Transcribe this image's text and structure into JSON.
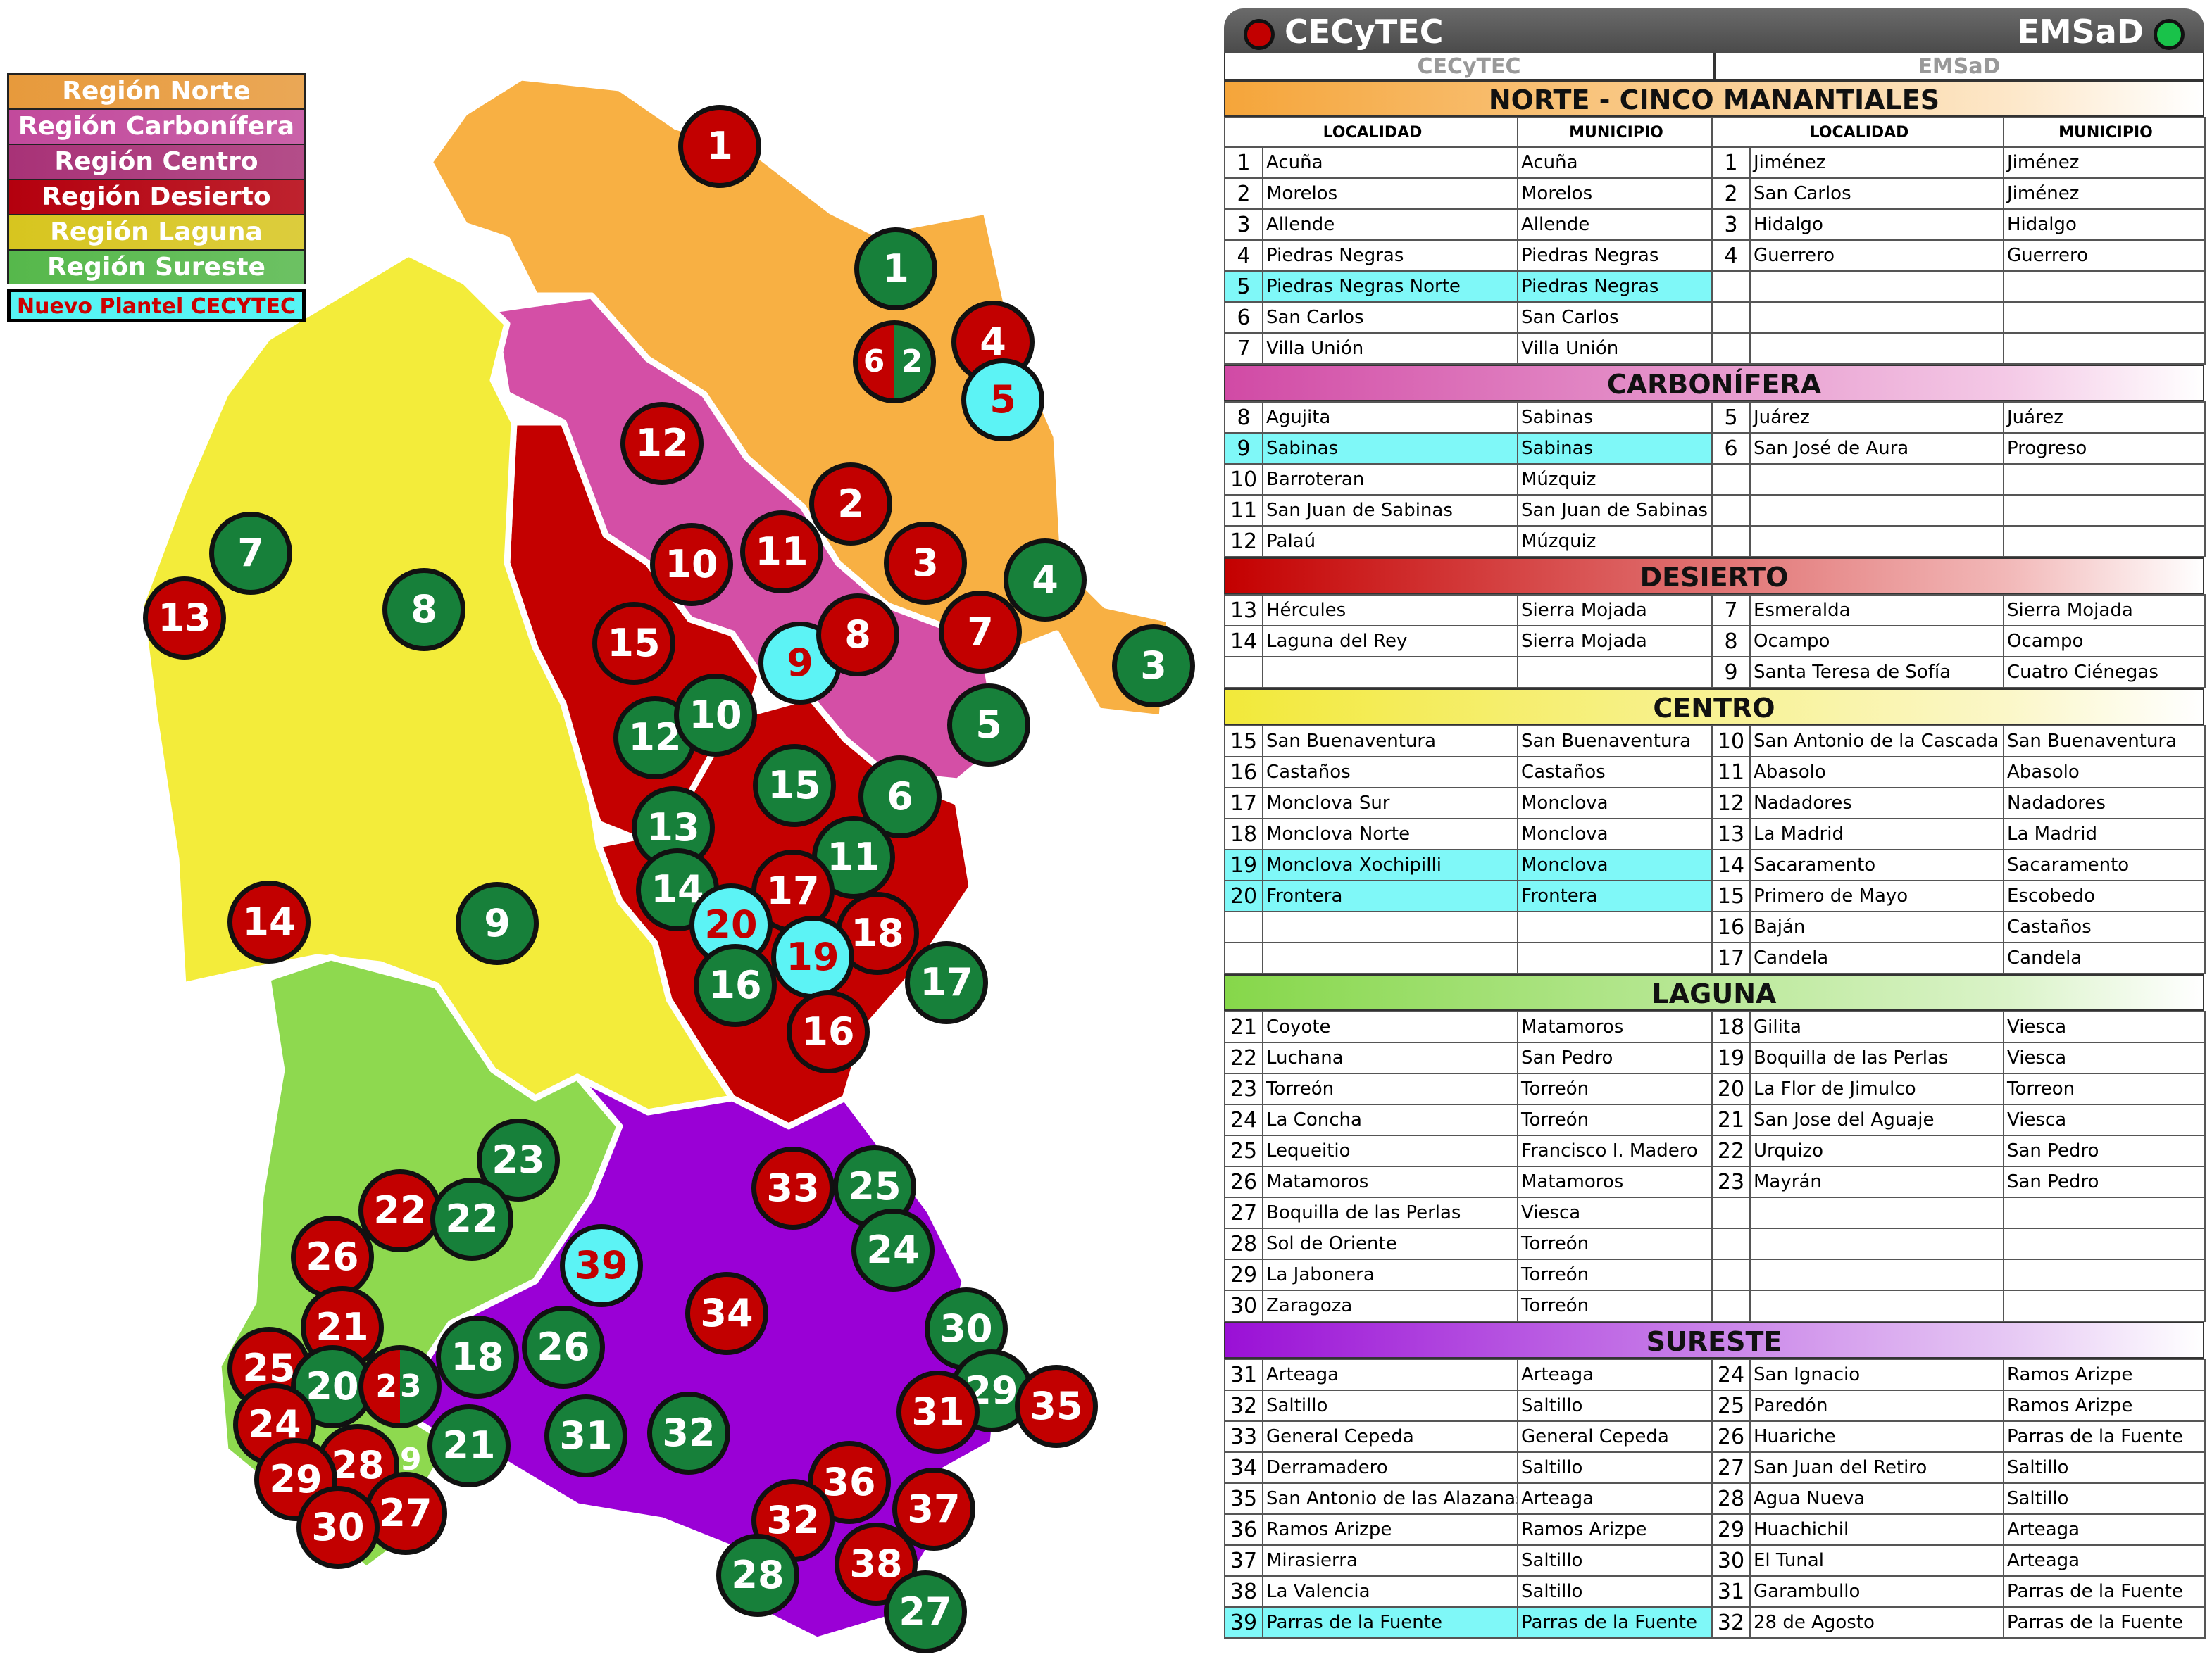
{
  "legend": [
    {
      "label": "Región Norte",
      "color": "#e79a3c"
    },
    {
      "label": "Región Carbonífera",
      "color": "#c24a9c"
    },
    {
      "label": "Región Centro",
      "color": "#a83277"
    },
    {
      "label": "Región Desierto",
      "color": "#b4000e"
    },
    {
      "label": "Región Laguna",
      "color": "#d7c51f"
    },
    {
      "label": "Región Sureste",
      "color": "#56b84b"
    }
  ],
  "legend_new": "Nuevo Plantel CECYTEC",
  "colors": {
    "norte": "#f8b043",
    "carbonifera": "#d44fa6",
    "desierto": "#c40000",
    "centro": "#f3ec3a",
    "laguna": "#8ed94f",
    "sureste": "#9a00d6"
  },
  "header": {
    "left": "CECyTEC",
    "right": "EMSaD",
    "sub_left": "CECyTEC",
    "sub_right": "EMSaD"
  },
  "column_headers": [
    "LOCALIDAD",
    "MUNICIPIO",
    "LOCALIDAD",
    "MUNICIPIO"
  ],
  "markers": [
    {
      "label": "1",
      "kind": "cecytec"
    },
    {
      "label": "1",
      "kind": "emsad"
    },
    {
      "label": "4",
      "kind": "cecytec"
    },
    {
      "label": "6 2",
      "kind": "split"
    },
    {
      "label": "5",
      "kind": "new"
    },
    {
      "label": "12",
      "kind": "cecytec"
    },
    {
      "label": "2",
      "kind": "cecytec"
    },
    {
      "label": "10",
      "kind": "cecytec"
    },
    {
      "label": "11",
      "kind": "cecytec"
    },
    {
      "label": "3",
      "kind": "cecytec"
    },
    {
      "label": "4",
      "kind": "emsad"
    },
    {
      "label": "7",
      "kind": "emsad"
    },
    {
      "label": "13",
      "kind": "cecytec"
    },
    {
      "label": "8",
      "kind": "emsad"
    },
    {
      "label": "15",
      "kind": "cecytec"
    },
    {
      "label": "9",
      "kind": "new"
    },
    {
      "label": "8",
      "kind": "cecytec"
    },
    {
      "label": "7",
      "kind": "cecytec"
    },
    {
      "label": "3",
      "kind": "emsad"
    },
    {
      "label": "12",
      "kind": "emsad"
    },
    {
      "label": "10",
      "kind": "emsad"
    },
    {
      "label": "5",
      "kind": "emsad"
    },
    {
      "label": "15",
      "kind": "emsad"
    },
    {
      "label": "6",
      "kind": "emsad"
    },
    {
      "label": "13",
      "kind": "emsad"
    },
    {
      "label": "11",
      "kind": "emsad"
    },
    {
      "label": "14",
      "kind": "emsad"
    },
    {
      "label": "17",
      "kind": "cecytec"
    },
    {
      "label": "14",
      "kind": "cecytec"
    },
    {
      "label": "9",
      "kind": "emsad"
    },
    {
      "label": "20",
      "kind": "new"
    },
    {
      "label": "18",
      "kind": "cecytec"
    },
    {
      "label": "19",
      "kind": "new"
    },
    {
      "label": "16",
      "kind": "emsad"
    },
    {
      "label": "17",
      "kind": "emsad"
    },
    {
      "label": "16",
      "kind": "cecytec"
    },
    {
      "label": "23",
      "kind": "emsad"
    },
    {
      "label": "33",
      "kind": "cecytec"
    },
    {
      "label": "25",
      "kind": "emsad"
    },
    {
      "label": "22",
      "kind": "cecytec"
    },
    {
      "label": "22",
      "kind": "emsad"
    },
    {
      "label": "24",
      "kind": "emsad"
    },
    {
      "label": "26",
      "kind": "cecytec"
    },
    {
      "label": "39",
      "kind": "new"
    },
    {
      "label": "34",
      "kind": "cecytec"
    },
    {
      "label": "21",
      "kind": "cecytec"
    },
    {
      "label": "30",
      "kind": "emsad"
    },
    {
      "label": "18",
      "kind": "emsad"
    },
    {
      "label": "26",
      "kind": "emsad"
    },
    {
      "label": "25",
      "kind": "cecytec"
    },
    {
      "label": "20",
      "kind": "emsad"
    },
    {
      "label": "23 19",
      "kind": "split"
    },
    {
      "label": "29",
      "kind": "emsad"
    },
    {
      "label": "35",
      "kind": "cecytec"
    },
    {
      "label": "31",
      "kind": "cecytec"
    },
    {
      "label": "24",
      "kind": "cecytec"
    },
    {
      "label": "21",
      "kind": "emsad"
    },
    {
      "label": "31",
      "kind": "emsad"
    },
    {
      "label": "32",
      "kind": "emsad"
    },
    {
      "label": "28",
      "kind": "cecytec"
    },
    {
      "label": "29",
      "kind": "cecytec"
    },
    {
      "label": "36",
      "kind": "cecytec"
    },
    {
      "label": "27",
      "kind": "cecytec"
    },
    {
      "label": "37",
      "kind": "cecytec"
    },
    {
      "label": "30",
      "kind": "cecytec"
    },
    {
      "label": "32",
      "kind": "cecytec"
    },
    {
      "label": "38",
      "kind": "cecytec"
    },
    {
      "label": "28",
      "kind": "emsad"
    },
    {
      "label": "27",
      "kind": "emsad"
    }
  ],
  "sections": [
    {
      "title": "NORTE - CINCO MANANTIALES",
      "grad": "linear-gradient(90deg,#f5a53a,#fde7c8 80%,#fff)",
      "rows": [
        {
          "n": "1",
          "loc": "Acuña",
          "mun": "Acuña",
          "n2": "1",
          "loc2": "Jiménez",
          "mun2": "Jiménez"
        },
        {
          "n": "2",
          "loc": "Morelos",
          "mun": "Morelos",
          "n2": "2",
          "loc2": "San Carlos",
          "mun2": "Jiménez"
        },
        {
          "n": "3",
          "loc": "Allende",
          "mun": "Allende",
          "n2": "3",
          "loc2": "Hidalgo",
          "mun2": "Hidalgo"
        },
        {
          "n": "4",
          "loc": "Piedras Negras",
          "mun": "Piedras Negras",
          "n2": "4",
          "loc2": "Guerrero",
          "mun2": "Guerrero"
        },
        {
          "n": "5",
          "loc": "Piedras Negras Norte",
          "mun": "Piedras Negras",
          "n2": "",
          "loc2": "",
          "mun2": "",
          "hl": true
        },
        {
          "n": "6",
          "loc": "San Carlos",
          "mun": "San Carlos",
          "n2": "",
          "loc2": "",
          "mun2": ""
        },
        {
          "n": "7",
          "loc": "Villa Unión",
          "mun": "Villa Unión",
          "n2": "",
          "loc2": "",
          "mun2": ""
        }
      ]
    },
    {
      "title": "CARBONÍFERA",
      "grad": "linear-gradient(90deg,#d14aa5,#f4c9e6 80%,#fff)",
      "rows": [
        {
          "n": "8",
          "loc": "Agujita",
          "mun": "Sabinas",
          "n2": "5",
          "loc2": "Juárez",
          "mun2": "Juárez"
        },
        {
          "n": "9",
          "loc": "Sabinas",
          "mun": "Sabinas",
          "n2": "6",
          "loc2": "San José de Aura",
          "mun2": "Progreso",
          "hl": true
        },
        {
          "n": "10",
          "loc": "Barroteran",
          "mun": "Múzquiz",
          "n2": "",
          "loc2": "",
          "mun2": ""
        },
        {
          "n": "11",
          "loc": "San Juan de Sabinas",
          "mun": "San Juan de Sabinas",
          "n2": "",
          "loc2": "",
          "mun2": ""
        },
        {
          "n": "12",
          "loc": "Palaú",
          "mun": "Múzquiz",
          "n2": "",
          "loc2": "",
          "mun2": ""
        }
      ]
    },
    {
      "title": "DESIERTO",
      "grad": "linear-gradient(90deg,#c40000,#f2b8b8 80%,#fff)",
      "rows": [
        {
          "n": "13",
          "loc": "Hércules",
          "mun": "Sierra Mojada",
          "n2": "7",
          "loc2": "Esmeralda",
          "mun2": "Sierra Mojada"
        },
        {
          "n": "14",
          "loc": "Laguna del Rey",
          "mun": "Sierra Mojada",
          "n2": "8",
          "loc2": "Ocampo",
          "mun2": "Ocampo"
        },
        {
          "n": "",
          "loc": "",
          "mun": "",
          "n2": "9",
          "loc2": "Santa Teresa de Sofía",
          "mun2": "Cuatro Ciénegas"
        }
      ]
    },
    {
      "title": "CENTRO",
      "grad": "linear-gradient(90deg,#f2e93a,#fbf7c8 80%,#fff)",
      "rows": [
        {
          "n": "15",
          "loc": "San Buenaventura",
          "mun": "San Buenaventura",
          "n2": "10",
          "loc2": "San Antonio de la Cascada",
          "mun2": "San Buenaventura"
        },
        {
          "n": "16",
          "loc": "Castaños",
          "mun": "Castaños",
          "n2": "11",
          "loc2": "Abasolo",
          "mun2": "Abasolo"
        },
        {
          "n": "17",
          "loc": "Monclova Sur",
          "mun": "Monclova",
          "n2": "12",
          "loc2": "Nadadores",
          "mun2": "Nadadores"
        },
        {
          "n": "18",
          "loc": "Monclova Norte",
          "mun": "Monclova",
          "n2": "13",
          "loc2": "La Madrid",
          "mun2": "La Madrid"
        },
        {
          "n": "19",
          "loc": "Monclova Xochipilli",
          "mun": "Monclova",
          "n2": "14",
          "loc2": "Sacaramento",
          "mun2": "Sacaramento",
          "hl": true
        },
        {
          "n": "20",
          "loc": "Frontera",
          "mun": "Frontera",
          "n2": "15",
          "loc2": "Primero de Mayo",
          "mun2": "Escobedo",
          "hl": true
        },
        {
          "n": "",
          "loc": "",
          "mun": "",
          "n2": "16",
          "loc2": "Baján",
          "mun2": "Castaños"
        },
        {
          "n": "",
          "loc": "",
          "mun": "",
          "n2": "17",
          "loc2": "Candela",
          "mun2": "Candela"
        }
      ]
    },
    {
      "title": "LAGUNA",
      "grad": "linear-gradient(90deg,#86d74a,#daf3c8 80%,#fff)",
      "rows": [
        {
          "n": "21",
          "loc": "Coyote",
          "mun": "Matamoros",
          "n2": "18",
          "loc2": "Gilita",
          "mun2": "Viesca"
        },
        {
          "n": "22",
          "loc": "Luchana",
          "mun": "San Pedro",
          "n2": "19",
          "loc2": "Boquilla de las Perlas",
          "mun2": "Viesca"
        },
        {
          "n": "23",
          "loc": "Torreón",
          "mun": "Torreón",
          "n2": "20",
          "loc2": "La Flor de Jimulco",
          "mun2": "Torreon"
        },
        {
          "n": "24",
          "loc": "La Concha",
          "mun": "Torreón",
          "n2": "21",
          "loc2": "San Jose del Aguaje",
          "mun2": "Viesca"
        },
        {
          "n": "25",
          "loc": "Lequeitio",
          "mun": "Francisco I. Madero",
          "n2": "22",
          "loc2": "Urquizo",
          "mun2": "San Pedro"
        },
        {
          "n": "26",
          "loc": "Matamoros",
          "mun": "Matamoros",
          "n2": "23",
          "loc2": "Mayrán",
          "mun2": "San Pedro"
        },
        {
          "n": "27",
          "loc": "Boquilla de las Perlas",
          "mun": "Viesca",
          "n2": "",
          "loc2": "",
          "mun2": ""
        },
        {
          "n": "28",
          "loc": "Sol de Oriente",
          "mun": "Torreón",
          "n2": "",
          "loc2": "",
          "mun2": ""
        },
        {
          "n": "29",
          "loc": "La Jabonera",
          "mun": "Torreón",
          "n2": "",
          "loc2": "",
          "mun2": ""
        },
        {
          "n": "30",
          "loc": "Zaragoza",
          "mun": "Torreón",
          "n2": "",
          "loc2": "",
          "mun2": ""
        }
      ]
    },
    {
      "title": "SURESTE",
      "grad": "linear-gradient(90deg,#9a10d6,#e6c8f4 80%,#fff)",
      "rows": [
        {
          "n": "31",
          "loc": "Arteaga",
          "mun": "Arteaga",
          "n2": "24",
          "loc2": "San Ignacio",
          "mun2": "Ramos Arizpe"
        },
        {
          "n": "32",
          "loc": "Saltillo",
          "mun": "Saltillo",
          "n2": "25",
          "loc2": "Paredón",
          "mun2": "Ramos Arizpe"
        },
        {
          "n": "33",
          "loc": "General Cepeda",
          "mun": "General Cepeda",
          "n2": "26",
          "loc2": "Huariche",
          "mun2": "Parras de la Fuente"
        },
        {
          "n": "34",
          "loc": "Derramadero",
          "mun": "Saltillo",
          "n2": "27",
          "loc2": "San Juan del Retiro",
          "mun2": "Saltillo"
        },
        {
          "n": "35",
          "loc": "San Antonio de las Alazanas",
          "mun": "Arteaga",
          "n2": "28",
          "loc2": "Agua Nueva",
          "mun2": "Saltillo"
        },
        {
          "n": "36",
          "loc": "Ramos Arizpe",
          "mun": "Ramos Arizpe",
          "n2": "29",
          "loc2": "Huachichil",
          "mun2": "Arteaga"
        },
        {
          "n": "37",
          "loc": "Mirasierra",
          "mun": "Saltillo",
          "n2": "30",
          "loc2": "El Tunal",
          "mun2": "Arteaga"
        },
        {
          "n": "38",
          "loc": "La Valencia",
          "mun": "Saltillo",
          "n2": "31",
          "loc2": "Garambullo",
          "mun2": "Parras de la Fuente"
        },
        {
          "n": "39",
          "loc": "Parras de la Fuente",
          "mun": "Parras de la Fuente",
          "n2": "32",
          "loc2": "28 de Agosto",
          "mun2": "Parras de la Fuente",
          "hl": true
        }
      ]
    }
  ]
}
